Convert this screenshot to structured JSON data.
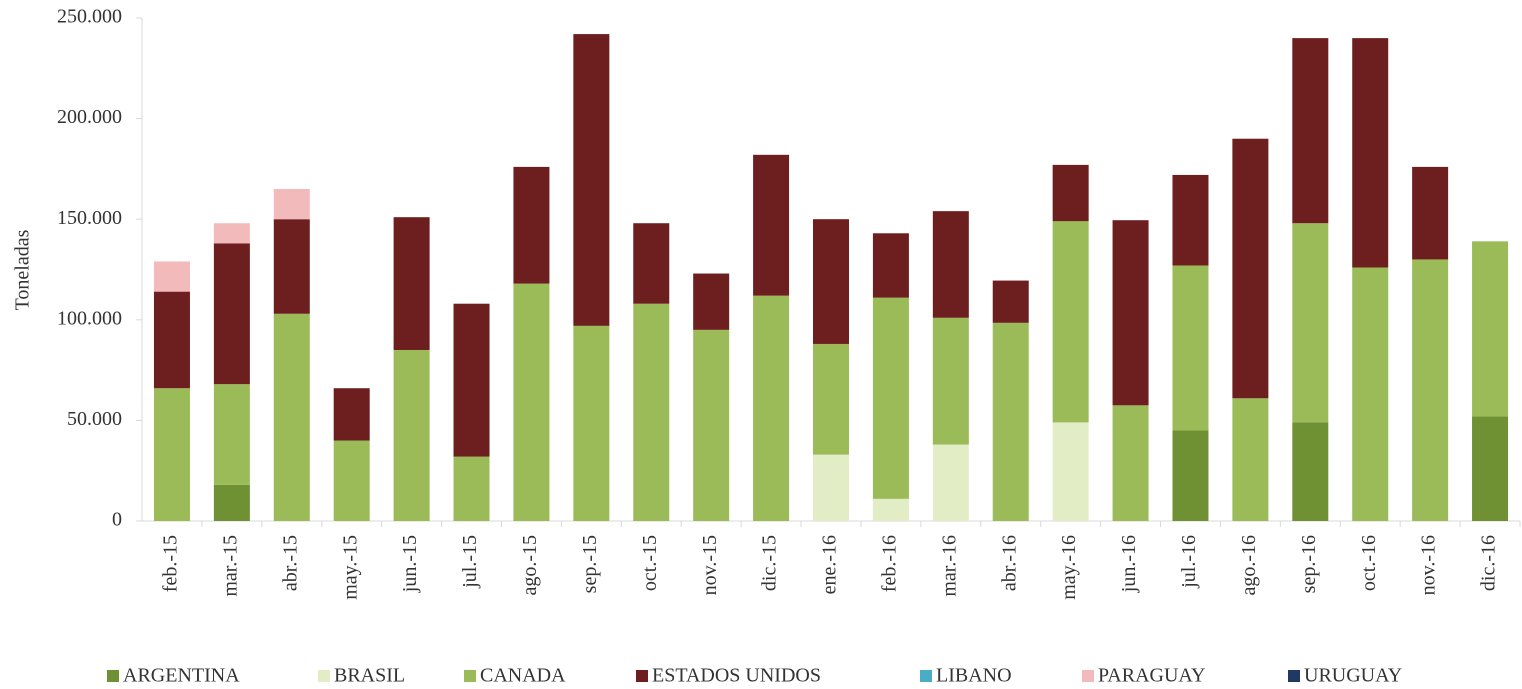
{
  "chart_data": {
    "type": "bar",
    "stacked": true,
    "ylabel": "Toneladas",
    "categories": [
      "feb.-15",
      "mar.-15",
      "abr.-15",
      "may.-15",
      "jun.-15",
      "jul.-15",
      "ago.-15",
      "sep.-15",
      "oct.-15",
      "nov.-15",
      "dic.-15",
      "ene.-16",
      "feb.-16",
      "mar.-16",
      "abr.-16",
      "may.-16",
      "jun.-16",
      "jul.-16",
      "ago.-16",
      "sep.-16",
      "oct.-16",
      "nov.-16",
      "dic.-16"
    ],
    "series": [
      {
        "name": "ARGENTINA",
        "color": "#6f9133",
        "values": [
          0,
          18000,
          0,
          0,
          0,
          0,
          0,
          0,
          0,
          0,
          0,
          0,
          0,
          0,
          0,
          0,
          0,
          45000,
          0,
          49000,
          0,
          0,
          52000
        ]
      },
      {
        "name": "BRASIL",
        "color": "#e2edc6",
        "values": [
          0,
          0,
          0,
          0,
          0,
          0,
          0,
          0,
          0,
          0,
          0,
          33000,
          11000,
          38000,
          0,
          49000,
          0,
          0,
          0,
          0,
          0,
          0,
          0
        ]
      },
      {
        "name": "CANADA",
        "color": "#9bbb59",
        "values": [
          66000,
          50000,
          103000,
          40000,
          85000,
          32000,
          118000,
          97000,
          108000,
          95000,
          112000,
          55000,
          100000,
          63000,
          98500,
          100000,
          57500,
          82000,
          61000,
          99000,
          126000,
          130000,
          87000
        ]
      },
      {
        "name": "ESTADOS UNIDOS",
        "color": "#6d1f1f",
        "values": [
          48000,
          70000,
          47000,
          26000,
          66000,
          76000,
          58000,
          145000,
          40000,
          28000,
          70000,
          62000,
          32000,
          53000,
          21000,
          28000,
          92000,
          45000,
          129000,
          92000,
          114000,
          46000,
          0
        ]
      },
      {
        "name": "LIBANO",
        "color": "#4bacc6",
        "values": [
          0,
          0,
          0,
          0,
          0,
          0,
          0,
          0,
          0,
          0,
          0,
          0,
          0,
          0,
          0,
          0,
          0,
          0,
          0,
          0,
          0,
          0,
          0
        ]
      },
      {
        "name": "PARAGUAY",
        "color": "#f2baba",
        "values": [
          15000,
          10000,
          15000,
          0,
          0,
          0,
          0,
          0,
          0,
          0,
          0,
          0,
          0,
          0,
          0,
          0,
          0,
          0,
          0,
          0,
          0,
          0,
          0
        ]
      },
      {
        "name": "URUGUAY",
        "color": "#1f3864",
        "values": [
          0,
          0,
          0,
          0,
          0,
          0,
          0,
          0,
          0,
          0,
          0,
          0,
          0,
          0,
          0,
          0,
          0,
          0,
          0,
          0,
          0,
          0,
          0
        ]
      }
    ],
    "ylim": [
      0,
      250000
    ],
    "yticks": [
      0,
      {
        "value": 50000,
        "label": "50.000"
      },
      {
        "value": 100000,
        "label": "100.000"
      },
      {
        "value": 150000,
        "label": "150.000"
      },
      {
        "value": 200000,
        "label": "200.000"
      },
      {
        "value": 250000,
        "label": "250.000"
      }
    ],
    "legend": "bottom"
  }
}
